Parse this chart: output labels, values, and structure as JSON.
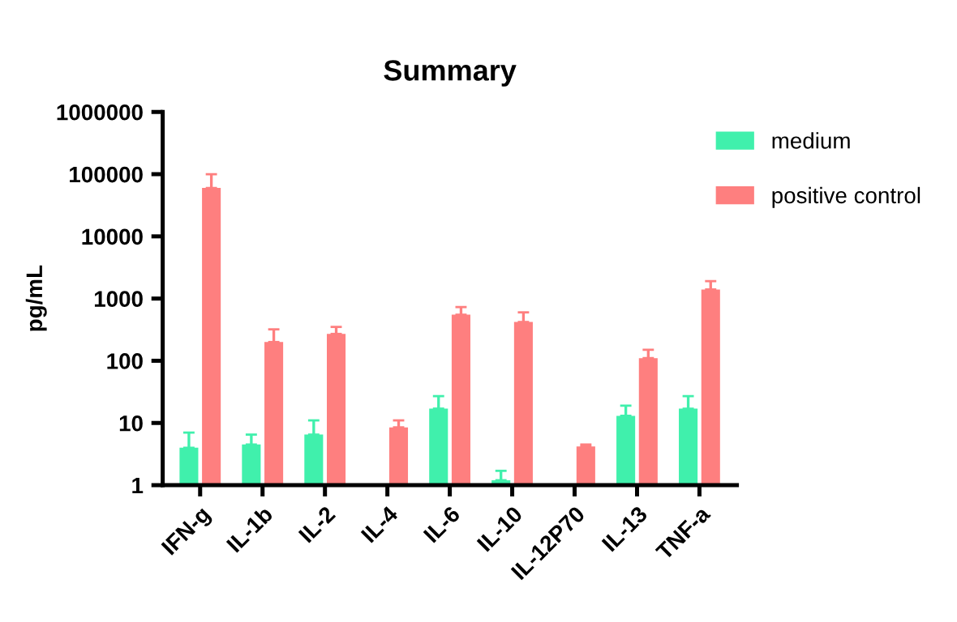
{
  "chart_data": {
    "type": "bar",
    "title": "Summary",
    "ylabel": "pg/mL",
    "categories": [
      "IFN-g",
      "IL-1b",
      "IL-2",
      "IL-4",
      "IL-6",
      "IL-10",
      "IL-12P70",
      "IL-13",
      "TNF-a"
    ],
    "series": [
      {
        "name": "medium",
        "color": "#40f0ac",
        "values": [
          4,
          4.5,
          6.5,
          null,
          17,
          1.2,
          null,
          13,
          17
        ],
        "errors": [
          [
            4,
            7
          ],
          [
            4.5,
            6.5
          ],
          [
            6.5,
            11
          ],
          null,
          [
            17,
            27
          ],
          [
            1.2,
            1.7
          ],
          null,
          [
            13,
            19
          ],
          [
            17,
            27
          ]
        ]
      },
      {
        "name": "positive control",
        "color": "#fe7f7f",
        "values": [
          60000,
          200,
          270,
          8.5,
          550,
          420,
          4.2,
          110,
          1400
        ],
        "errors": [
          [
            60000,
            100000
          ],
          [
            200,
            320
          ],
          [
            270,
            350
          ],
          [
            8.5,
            11
          ],
          [
            550,
            730
          ],
          [
            420,
            600
          ],
          [
            4.2,
            4.5
          ],
          [
            110,
            150
          ],
          [
            1400,
            1900
          ]
        ]
      }
    ],
    "log": "y",
    "ylim": [
      1,
      1000000
    ],
    "yticks": [
      1,
      10,
      100,
      1000,
      10000,
      100000,
      1000000
    ],
    "grid": false,
    "legend": "top right"
  }
}
